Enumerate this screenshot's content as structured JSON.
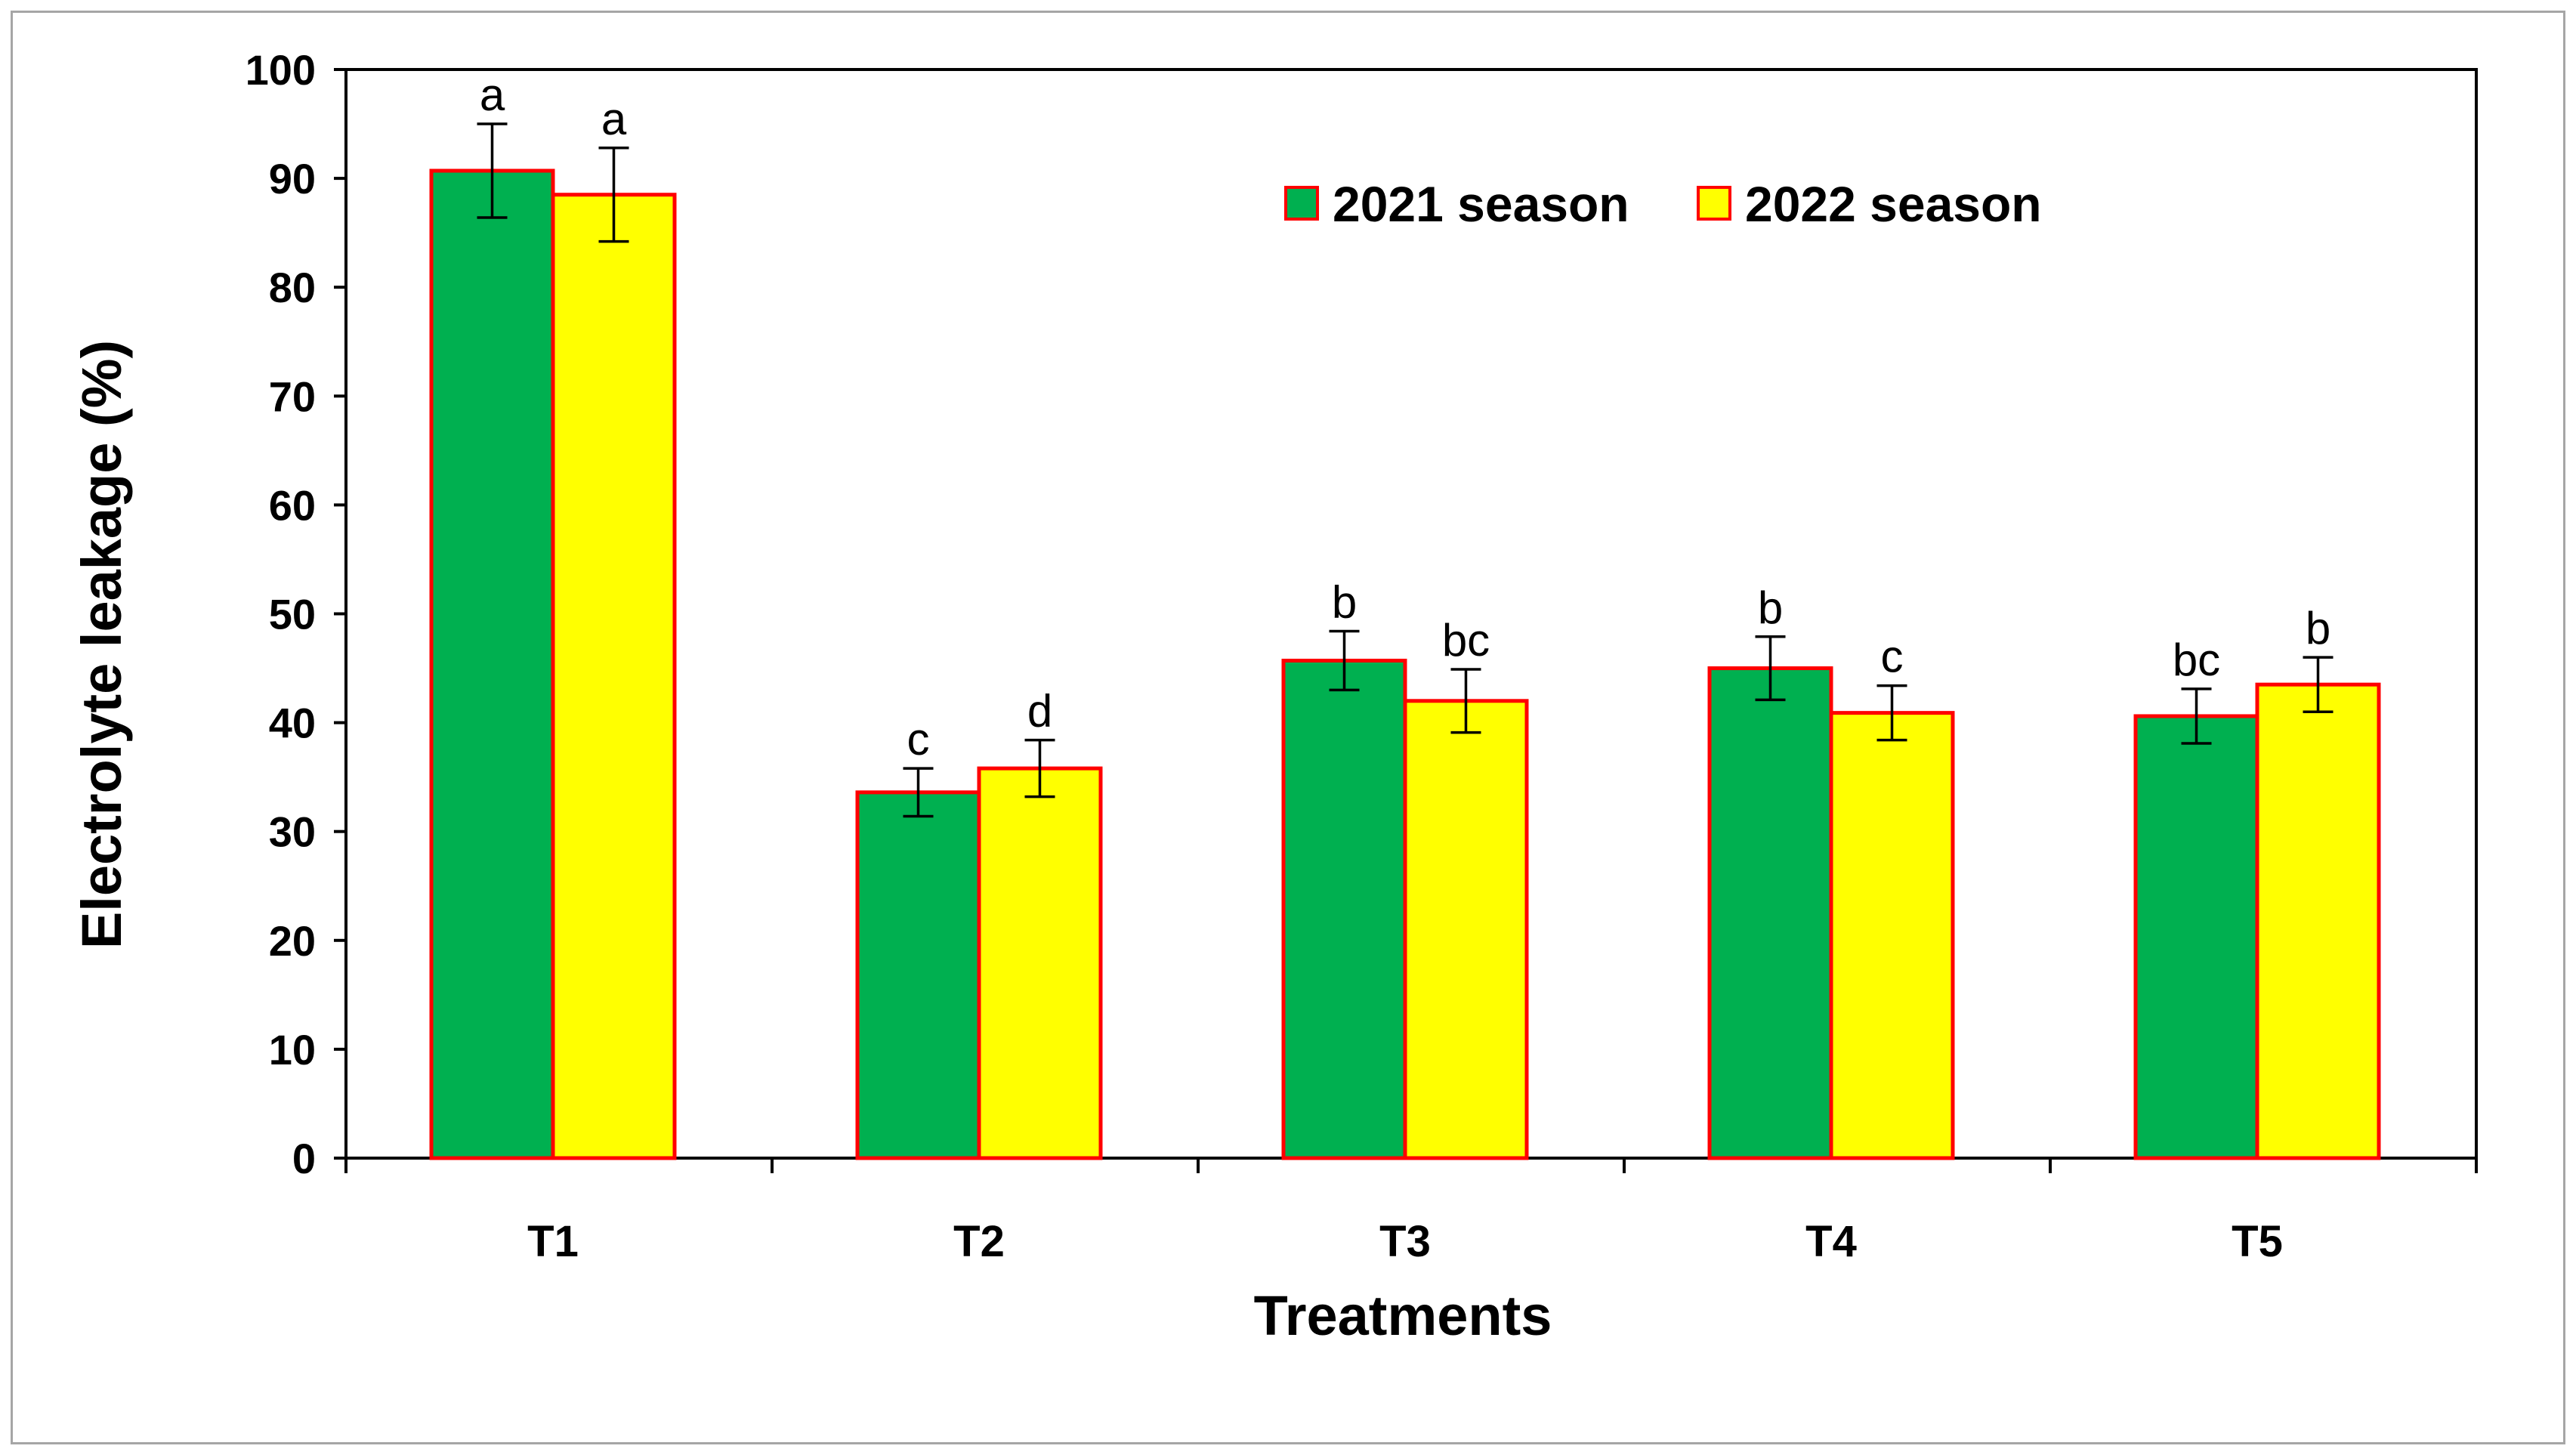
{
  "chart_data": {
    "type": "bar",
    "title": "",
    "xlabel": "Treatments",
    "ylabel": "Electrolyte leakage (%)",
    "ylim": [
      0,
      100
    ],
    "yticks": [
      "0",
      "10",
      "20",
      "30",
      "40",
      "50",
      "60",
      "70",
      "80",
      "90",
      "100"
    ],
    "grid": false,
    "legend_position": "top-right",
    "categories": [
      "T1",
      "T2",
      "T3",
      "T4",
      "T5"
    ],
    "series": [
      {
        "name": "2021 season",
        "color": "#00b050",
        "edge_color": "#ff0000",
        "values": [
          90.7,
          33.6,
          45.7,
          45.0,
          40.6
        ],
        "errors": [
          4.3,
          2.2,
          2.7,
          2.9,
          2.5
        ],
        "letters": [
          "a",
          "c",
          "b",
          "b",
          "bc"
        ]
      },
      {
        "name": "2022 season",
        "color": "#ffff00",
        "edge_color": "#ff0000",
        "values": [
          88.5,
          35.8,
          42.0,
          40.9,
          43.5
        ],
        "errors": [
          4.3,
          2.6,
          2.9,
          2.5,
          2.5
        ],
        "letters": [
          "a",
          "d",
          "bc",
          "c",
          "b"
        ]
      }
    ]
  }
}
